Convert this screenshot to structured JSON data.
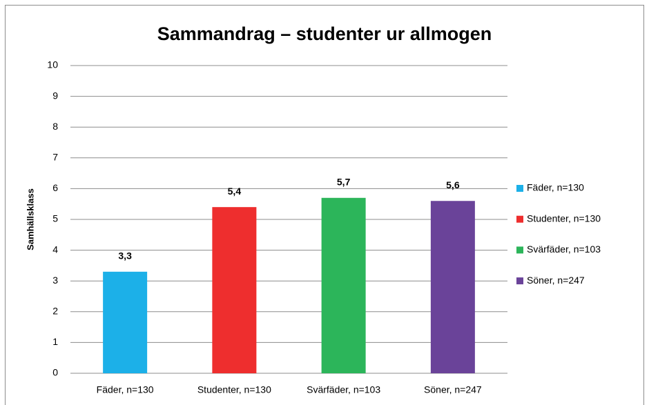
{
  "chart_data": {
    "type": "bar",
    "title": "Sammandrag – studenter ur allmogen",
    "y_label": "Samhällsklass",
    "categories": [
      "Fäder, n=130",
      "Studenter, n=130",
      "Svärfäder, n=103",
      "Söner, n=247"
    ],
    "values": [
      3.3,
      5.4,
      5.7,
      5.6
    ],
    "value_labels": [
      "3,3",
      "5,4",
      "5,7",
      "5,6"
    ],
    "colors": [
      "#1cb0e8",
      "#ee2e2e",
      "#2cb55a",
      "#6a4399"
    ],
    "ylim": [
      0,
      10
    ],
    "yticks": [
      0,
      1,
      2,
      3,
      4,
      5,
      6,
      7,
      8,
      9,
      10
    ],
    "grid": true,
    "legend": "right"
  }
}
